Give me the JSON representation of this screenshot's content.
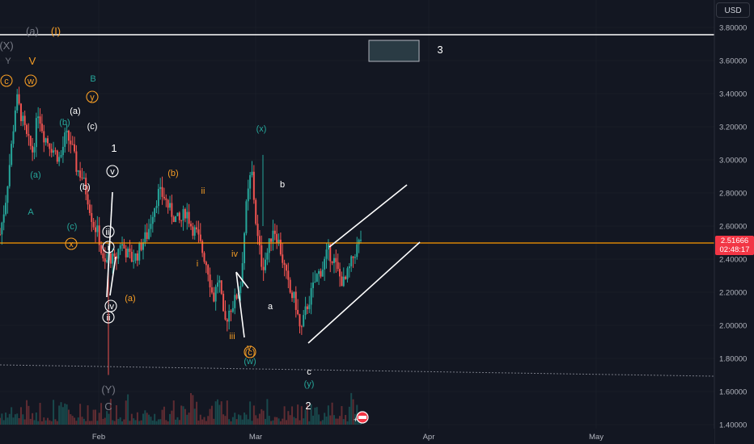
{
  "toolbar": {
    "currency": "USD"
  },
  "price": {
    "last": "2.51666",
    "countdown": "02:48:17",
    "last_value": 2.51666
  },
  "colors": {
    "bg": "#131722",
    "up": "#26a69a",
    "down": "#ef5350",
    "price_line": "#ff9800",
    "teal_label": "#26a69a",
    "orange_label": "#f59d25",
    "white": "#ffffff",
    "gray_label": "#787b86",
    "grid": "#1e222d"
  },
  "chart_data": {
    "type": "candlestick",
    "x_ticks": [
      "Feb",
      "Mar",
      "Apr",
      "May"
    ],
    "y_ticks": [
      "3.80000",
      "3.60000",
      "3.40000",
      "3.20000",
      "3.00000",
      "2.80000",
      "2.60000",
      "2.40000",
      "2.20000",
      "2.00000",
      "1.80000",
      "1.60000",
      "1.40000"
    ],
    "ylim": [
      1.39,
      3.89
    ],
    "series": [
      {
        "name": "price",
        "values_approx": [
          2.55,
          2.75,
          3.05,
          3.38,
          3.25,
          3.12,
          3.05,
          3.3,
          3.15,
          3.1,
          3.05,
          3.0,
          3.15,
          3.1,
          2.95,
          2.9,
          2.78,
          2.62,
          2.55,
          2.35,
          2.42,
          2.38,
          2.5,
          2.45,
          2.4,
          2.42,
          2.5,
          2.55,
          2.7,
          2.8,
          2.78,
          2.7,
          2.65,
          2.62,
          2.7,
          2.6,
          2.55,
          2.45,
          2.35,
          2.15,
          2.3,
          2.0,
          2.1,
          2.15,
          2.25,
          2.7,
          2.95,
          2.55,
          2.35,
          2.45,
          2.6,
          2.5,
          2.35,
          2.2,
          2.15,
          1.95,
          2.1,
          2.2,
          2.3,
          2.35,
          2.45,
          2.4,
          2.3,
          2.25,
          2.35,
          2.45,
          2.52
        ]
      }
    ],
    "key_levels": [
      3.76
    ],
    "wave_labels": [
      {
        "text": "(a)",
        "color": "gray"
      },
      {
        "text": "(I)",
        "color": "orange"
      },
      {
        "text": "(X)",
        "color": "gray"
      },
      {
        "text": "Y",
        "color": "gray"
      },
      {
        "text": "V",
        "color": "orange"
      },
      {
        "text": "c",
        "color": "orange_circle"
      },
      {
        "text": "w",
        "color": "orange_circle"
      },
      {
        "text": "B",
        "color": "teal"
      },
      {
        "text": "y",
        "color": "orange_circle"
      },
      {
        "text": "(a)",
        "color": "white"
      },
      {
        "text": "(b)",
        "color": "teal"
      },
      {
        "text": "(c)",
        "color": "white"
      },
      {
        "text": "1",
        "color": "white"
      },
      {
        "text": "v",
        "color": "white_circle"
      },
      {
        "text": "(a)",
        "color": "teal"
      },
      {
        "text": "(b)",
        "color": "white"
      },
      {
        "text": "A",
        "color": "teal"
      },
      {
        "text": "(c)",
        "color": "teal"
      },
      {
        "text": "x",
        "color": "orange_circle"
      },
      {
        "text": "iii",
        "color": "white_circle"
      },
      {
        "text": "i",
        "color": "white_circle"
      },
      {
        "text": "iv",
        "color": "white_circle"
      },
      {
        "text": "ii",
        "color": "white_circle"
      },
      {
        "text": "(a)",
        "color": "orange"
      },
      {
        "text": "(Y)",
        "color": "gray"
      },
      {
        "text": "C",
        "color": "gray"
      },
      {
        "text": "(b)",
        "color": "orange"
      },
      {
        "text": "ii",
        "color": "orange"
      },
      {
        "text": "i",
        "color": "orange"
      },
      {
        "text": "iv",
        "color": "orange"
      },
      {
        "text": "iii",
        "color": "orange"
      },
      {
        "text": "v",
        "color": "orange"
      },
      {
        "text": "(c)",
        "color": "orange_circle"
      },
      {
        "text": "(w)",
        "color": "teal"
      },
      {
        "text": "(x)",
        "color": "teal"
      },
      {
        "text": "b",
        "color": "white"
      },
      {
        "text": "a",
        "color": "white"
      },
      {
        "text": "c",
        "color": "white"
      },
      {
        "text": "(y)",
        "color": "teal"
      },
      {
        "text": "2",
        "color": "white"
      },
      {
        "text": "3",
        "color": "white"
      }
    ]
  }
}
